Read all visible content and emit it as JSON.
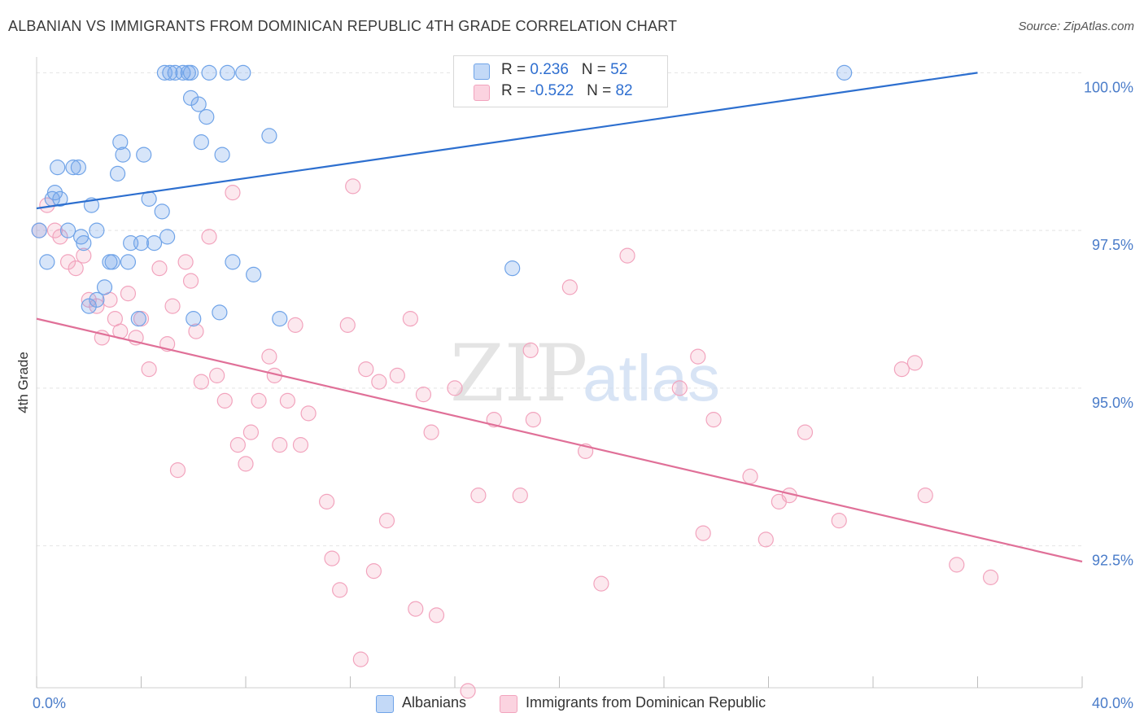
{
  "title": "ALBANIAN VS IMMIGRANTS FROM DOMINICAN REPUBLIC 4TH GRADE CORRELATION CHART",
  "source": "Source: ZipAtlas.com",
  "colors": {
    "blue": "#6fa3e8",
    "blue_line": "#2d6fcf",
    "pink": "#f2a3bd",
    "pink_line": "#e07098",
    "grid": "#e4e4e4",
    "tick_label": "#4a7cc9"
  },
  "legend": {
    "rows": [
      {
        "r_label": "R = ",
        "r_value": "0.236",
        "n_label": "N = ",
        "n_value": "52"
      },
      {
        "r_label": "R = ",
        "r_value": "-0.522",
        "n_label": "N = ",
        "n_value": "82"
      }
    ]
  },
  "bottom_legend": {
    "albanians": "Albanians",
    "dominican": "Immigrants from Dominican Republic"
  },
  "watermark": {
    "zip": "ZIP",
    "atlas": "atlas"
  },
  "chart_data": {
    "type": "scatter",
    "title": "ALBANIAN VS IMMIGRANTS FROM DOMINICAN REPUBLIC 4TH GRADE CORRELATION CHART",
    "xlabel": "",
    "ylabel": "4th Grade",
    "xlim": [
      0,
      40
    ],
    "ylim": [
      90.25,
      100.25
    ],
    "x_tick_labels": [
      {
        "value": 0,
        "label": "0.0%"
      },
      {
        "value": 40,
        "label": "40.0%"
      }
    ],
    "y_tick_labels": [
      {
        "value": 100,
        "label": "100.0%"
      },
      {
        "value": 97.5,
        "label": "97.5%"
      },
      {
        "value": 95,
        "label": "95.0%"
      },
      {
        "value": 92.5,
        "label": "92.5%"
      }
    ],
    "grid": true,
    "legend_position": "top-center",
    "series": [
      {
        "name": "Albanians",
        "color": "#6fa3e8",
        "r": 0.236,
        "n": 52,
        "trend": [
          [
            0,
            97.85
          ],
          [
            36,
            100.0
          ]
        ],
        "points": [
          [
            0.1,
            97.5
          ],
          [
            0.4,
            97.0
          ],
          [
            0.6,
            98.0
          ],
          [
            0.7,
            98.1
          ],
          [
            0.8,
            98.5
          ],
          [
            0.9,
            98.0
          ],
          [
            1.2,
            97.5
          ],
          [
            1.4,
            98.5
          ],
          [
            1.6,
            98.5
          ],
          [
            1.7,
            97.4
          ],
          [
            1.8,
            97.3
          ],
          [
            2.1,
            97.9
          ],
          [
            2.3,
            97.5
          ],
          [
            2.6,
            96.6
          ],
          [
            2.8,
            97.0
          ],
          [
            3.1,
            98.4
          ],
          [
            3.2,
            98.9
          ],
          [
            3.3,
            98.7
          ],
          [
            3.5,
            97.0
          ],
          [
            3.6,
            97.3
          ],
          [
            3.9,
            96.1
          ],
          [
            4.0,
            97.3
          ],
          [
            4.1,
            98.7
          ],
          [
            4.3,
            98.0
          ],
          [
            4.5,
            97.3
          ],
          [
            4.8,
            97.8
          ],
          [
            5.0,
            97.4
          ],
          [
            5.1,
            100.0
          ],
          [
            5.3,
            100.0
          ],
          [
            5.6,
            100.0
          ],
          [
            5.8,
            100.0
          ],
          [
            5.9,
            99.6
          ],
          [
            6.0,
            96.1
          ],
          [
            6.2,
            99.5
          ],
          [
            6.3,
            98.9
          ],
          [
            6.5,
            99.3
          ],
          [
            6.6,
            100.0
          ],
          [
            7.0,
            96.2
          ],
          [
            7.1,
            98.7
          ],
          [
            7.3,
            100.0
          ],
          [
            7.5,
            97.0
          ],
          [
            7.9,
            100.0
          ],
          [
            8.3,
            96.8
          ],
          [
            8.9,
            99.0
          ],
          [
            9.3,
            96.1
          ],
          [
            2.3,
            96.4
          ],
          [
            2.0,
            96.3
          ],
          [
            5.9,
            100.0
          ],
          [
            4.9,
            100.0
          ],
          [
            18.2,
            96.9
          ],
          [
            30.9,
            100.0
          ],
          [
            2.9,
            97.0
          ]
        ]
      },
      {
        "name": "Immigrants from Dominican Republic",
        "color": "#f2a3bd",
        "r": -0.522,
        "n": 82,
        "trend": [
          [
            0,
            96.1
          ],
          [
            40,
            92.25
          ]
        ],
        "points": [
          [
            0.1,
            97.5
          ],
          [
            0.4,
            97.9
          ],
          [
            0.7,
            97.5
          ],
          [
            0.9,
            97.4
          ],
          [
            1.2,
            97.0
          ],
          [
            1.5,
            96.9
          ],
          [
            1.8,
            97.1
          ],
          [
            2.0,
            96.4
          ],
          [
            2.3,
            96.3
          ],
          [
            2.5,
            95.8
          ],
          [
            2.8,
            96.4
          ],
          [
            3.0,
            96.1
          ],
          [
            3.2,
            95.9
          ],
          [
            3.5,
            96.5
          ],
          [
            3.8,
            95.8
          ],
          [
            4.0,
            96.1
          ],
          [
            4.3,
            95.3
          ],
          [
            4.7,
            96.9
          ],
          [
            5.0,
            95.7
          ],
          [
            5.2,
            96.3
          ],
          [
            5.4,
            93.7
          ],
          [
            5.7,
            97.0
          ],
          [
            5.9,
            96.7
          ],
          [
            6.1,
            95.9
          ],
          [
            6.3,
            95.1
          ],
          [
            6.6,
            97.4
          ],
          [
            6.9,
            95.2
          ],
          [
            7.2,
            94.8
          ],
          [
            7.5,
            98.1
          ],
          [
            7.7,
            94.1
          ],
          [
            8.0,
            93.8
          ],
          [
            8.2,
            94.3
          ],
          [
            8.5,
            94.8
          ],
          [
            8.9,
            95.5
          ],
          [
            9.1,
            95.2
          ],
          [
            9.3,
            94.1
          ],
          [
            9.6,
            94.8
          ],
          [
            9.9,
            96.0
          ],
          [
            10.1,
            94.1
          ],
          [
            10.4,
            94.6
          ],
          [
            11.1,
            93.2
          ],
          [
            11.3,
            92.3
          ],
          [
            11.6,
            91.8
          ],
          [
            11.9,
            96.0
          ],
          [
            12.1,
            98.2
          ],
          [
            12.4,
            90.7
          ],
          [
            12.6,
            95.3
          ],
          [
            12.9,
            92.1
          ],
          [
            13.1,
            95.1
          ],
          [
            13.4,
            92.9
          ],
          [
            13.8,
            95.2
          ],
          [
            14.3,
            96.1
          ],
          [
            14.5,
            91.5
          ],
          [
            14.8,
            94.9
          ],
          [
            15.1,
            94.3
          ],
          [
            15.3,
            91.4
          ],
          [
            16.0,
            95.0
          ],
          [
            16.5,
            90.2
          ],
          [
            16.9,
            93.3
          ],
          [
            17.5,
            94.5
          ],
          [
            18.5,
            93.3
          ],
          [
            18.9,
            95.6
          ],
          [
            19.0,
            94.5
          ],
          [
            20.4,
            96.6
          ],
          [
            21.0,
            94.0
          ],
          [
            21.6,
            91.9
          ],
          [
            22.6,
            97.1
          ],
          [
            24.6,
            95.0
          ],
          [
            25.3,
            95.5
          ],
          [
            25.5,
            92.7
          ],
          [
            25.9,
            94.5
          ],
          [
            27.3,
            93.6
          ],
          [
            27.9,
            92.6
          ],
          [
            28.4,
            93.2
          ],
          [
            28.8,
            93.3
          ],
          [
            29.4,
            94.3
          ],
          [
            30.7,
            92.9
          ],
          [
            33.1,
            95.3
          ],
          [
            33.6,
            95.4
          ],
          [
            34.0,
            93.3
          ],
          [
            35.2,
            92.2
          ],
          [
            36.5,
            92.0
          ]
        ]
      }
    ]
  }
}
